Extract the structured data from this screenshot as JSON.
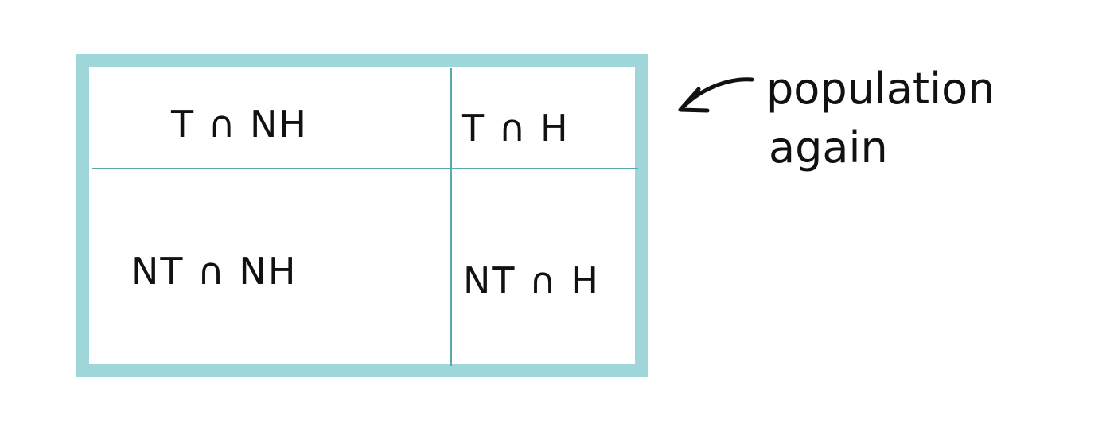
{
  "diagram": {
    "cells": {
      "top_left": "T ∩ NH",
      "top_right": "T ∩ H",
      "bottom_left": "NT ∩ NH",
      "bottom_right": "NT ∩ H"
    },
    "annotation": {
      "line1": "population",
      "line2": "again"
    },
    "colors": {
      "border": "#9fd6d9",
      "divider": "#5aa7ad",
      "ink": "#111111"
    }
  }
}
